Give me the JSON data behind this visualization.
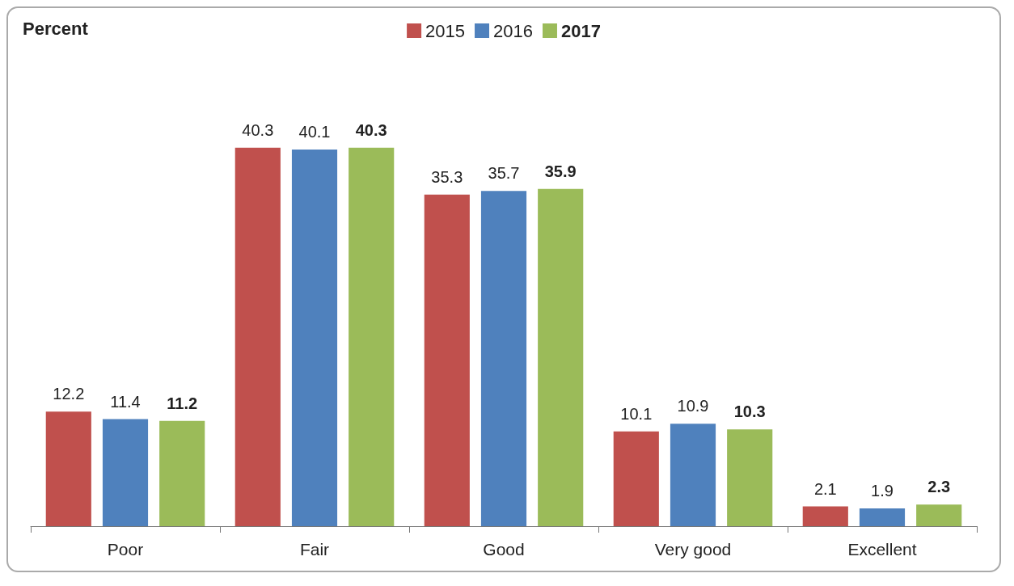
{
  "chart_data": {
    "type": "bar",
    "annotations": [
      "Percent"
    ],
    "categories": [
      "Poor",
      "Fair",
      "Good",
      "Very good",
      "Excellent"
    ],
    "series": [
      {
        "name": "2015",
        "color": "#c0504d",
        "values": [
          12.2,
          40.3,
          35.3,
          10.1,
          2.1
        ]
      },
      {
        "name": "2016",
        "color": "#4f81bd",
        "values": [
          11.4,
          40.1,
          35.7,
          10.9,
          1.9
        ]
      },
      {
        "name": "2017",
        "color": "#9bbb59",
        "values": [
          11.2,
          40.3,
          35.9,
          10.3,
          2.3
        ]
      }
    ],
    "data_labels": true,
    "legend": "top",
    "grid": false
  }
}
